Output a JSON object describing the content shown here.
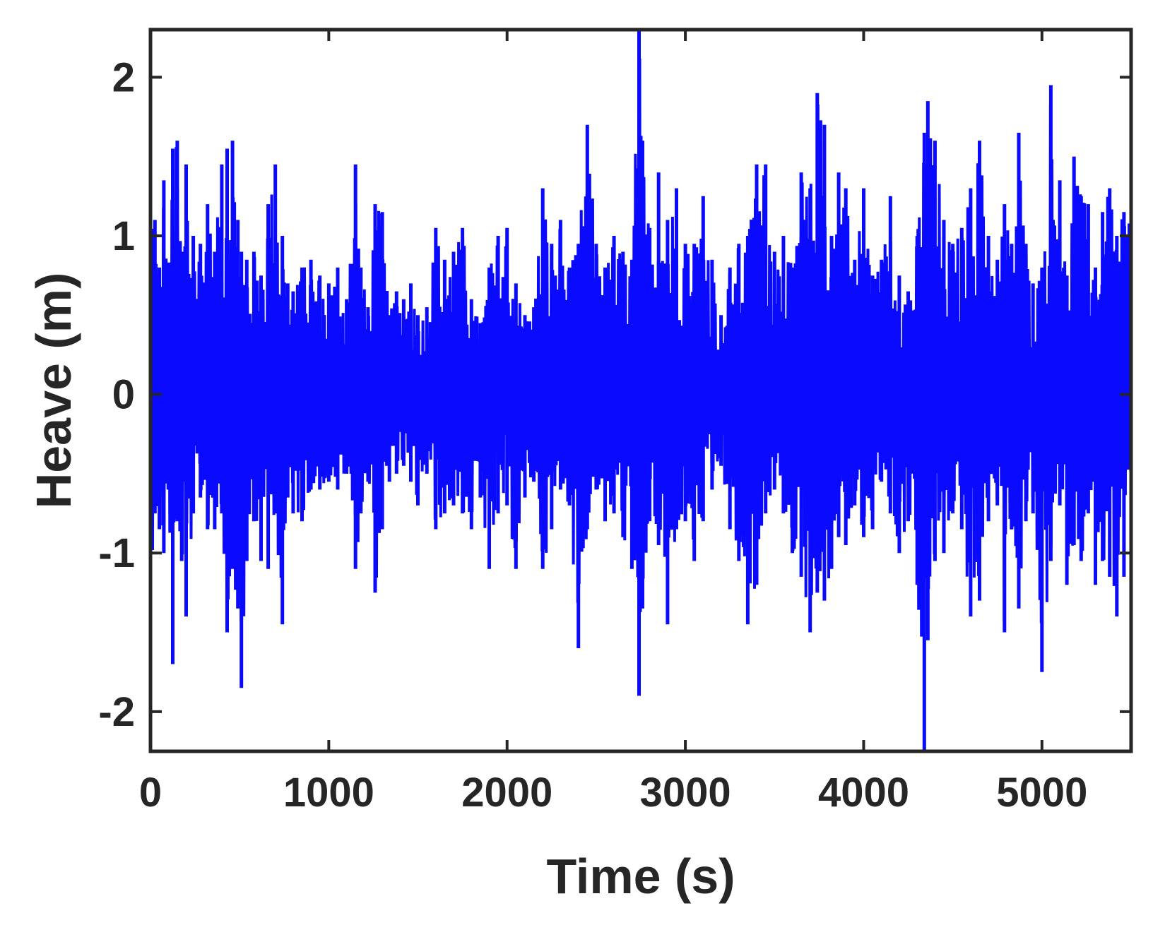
{
  "chart_data": {
    "type": "line",
    "title": "",
    "xlabel": "Time (s)",
    "ylabel": "Heave (m)",
    "xlim": [
      0,
      5500
    ],
    "ylim": [
      -2.25,
      2.3
    ],
    "xticks": [
      0,
      1000,
      2000,
      3000,
      4000,
      5000
    ],
    "xtick_labels": [
      "0",
      "1000",
      "2000",
      "3000",
      "4000",
      "5000"
    ],
    "yticks": [
      2,
      1,
      0,
      -1,
      -2
    ],
    "ytick_labels": [
      "2",
      "1",
      "0",
      "-1",
      "-2"
    ],
    "grid": false,
    "legend": "none",
    "line_color": "#0a0aff",
    "axis_color": "#262626",
    "series": [
      {
        "sampling_interval_s": 1,
        "envelope_x": [
          0,
          25,
          50,
          75,
          100,
          125,
          150,
          175,
          200,
          240,
          280,
          320,
          360,
          400,
          430,
          460,
          490,
          510,
          540,
          580,
          620,
          660,
          700,
          740,
          770,
          800,
          850,
          900,
          950,
          1000,
          1050,
          1100,
          1150,
          1180,
          1220,
          1260,
          1300,
          1340,
          1380,
          1420,
          1460,
          1500,
          1550,
          1600,
          1650,
          1700,
          1750,
          1800,
          1850,
          1900,
          1950,
          2000,
          2050,
          2100,
          2150,
          2200,
          2250,
          2300,
          2350,
          2400,
          2450,
          2500,
          2550,
          2600,
          2650,
          2700,
          2740,
          2760,
          2800,
          2850,
          2900,
          2950,
          3000,
          3050,
          3100,
          3150,
          3200,
          3250,
          3300,
          3350,
          3400,
          3450,
          3500,
          3550,
          3600,
          3650,
          3700,
          3740,
          3780,
          3820,
          3860,
          3900,
          3950,
          4000,
          4050,
          4100,
          4150,
          4200,
          4250,
          4300,
          4340,
          4360,
          4400,
          4450,
          4500,
          4550,
          4600,
          4650,
          4700,
          4750,
          4790,
          4830,
          4870,
          4910,
          4950,
          5000,
          5050,
          5100,
          5140,
          5180,
          5220,
          5260,
          5300,
          5340,
          5380,
          5420,
          5460,
          5500
        ],
        "envelope_upper": [
          1.5,
          1.1,
          0.8,
          1.35,
          0.75,
          1.55,
          1.6,
          0.9,
          1.45,
          1.0,
          0.95,
          1.2,
          0.9,
          1.45,
          1.55,
          1.6,
          1.1,
          0.9,
          0.85,
          0.9,
          0.75,
          1.2,
          1.45,
          1.0,
          0.7,
          0.65,
          0.8,
          0.85,
          0.75,
          0.7,
          0.8,
          0.6,
          1.45,
          0.8,
          0.55,
          1.2,
          1.15,
          0.5,
          0.65,
          0.6,
          0.7,
          0.5,
          0.55,
          1.05,
          0.85,
          0.9,
          1.05,
          0.6,
          0.45,
          0.8,
          1.0,
          1.05,
          0.7,
          0.5,
          0.55,
          1.3,
          0.95,
          1.1,
          0.8,
          0.95,
          1.7,
          0.95,
          0.8,
          1.0,
          0.9,
          0.85,
          2.3,
          1.6,
          1.05,
          1.4,
          1.1,
          1.3,
          0.95,
          0.95,
          1.25,
          0.85,
          0.5,
          0.8,
          0.95,
          1.0,
          1.45,
          1.45,
          0.9,
          1.0,
          0.8,
          1.4,
          1.3,
          1.9,
          1.7,
          1.0,
          1.4,
          1.3,
          0.85,
          1.3,
          0.75,
          0.85,
          1.25,
          0.75,
          0.65,
          1.0,
          1.65,
          1.85,
          1.6,
          1.1,
          0.95,
          1.05,
          1.3,
          1.6,
          1.0,
          0.85,
          1.2,
          0.95,
          1.65,
          0.95,
          0.7,
          0.8,
          1.95,
          1.35,
          0.75,
          1.5,
          1.25,
          1.2,
          0.8,
          1.15,
          1.3,
          1.0,
          1.15,
          1.3
        ],
        "envelope_lower": [
          -1.2,
          -0.75,
          -0.85,
          -1.0,
          -0.6,
          -1.7,
          -0.8,
          -1.05,
          -1.4,
          -0.75,
          -0.65,
          -0.85,
          -0.85,
          -0.75,
          -1.5,
          -1.1,
          -1.35,
          -1.85,
          -1.05,
          -0.8,
          -1.05,
          -1.1,
          -0.75,
          -1.45,
          -0.65,
          -0.75,
          -0.8,
          -0.6,
          -0.6,
          -0.55,
          -0.6,
          -0.5,
          -1.1,
          -0.75,
          -0.55,
          -1.25,
          -0.85,
          -0.55,
          -0.5,
          -0.45,
          -0.55,
          -0.7,
          -0.5,
          -0.85,
          -0.75,
          -0.7,
          -0.75,
          -0.85,
          -0.65,
          -1.1,
          -0.75,
          -0.7,
          -1.1,
          -0.65,
          -0.55,
          -1.1,
          -0.85,
          -0.6,
          -0.7,
          -1.6,
          -0.85,
          -0.6,
          -0.8,
          -0.75,
          -0.9,
          -1.1,
          -1.9,
          -1.35,
          -0.8,
          -0.95,
          -1.45,
          -0.85,
          -0.8,
          -1.05,
          -0.8,
          -0.6,
          -0.45,
          -0.85,
          -1.05,
          -1.45,
          -1.2,
          -0.75,
          -0.6,
          -0.75,
          -1.0,
          -1.15,
          -1.5,
          -1.25,
          -1.3,
          -1.1,
          -0.9,
          -0.95,
          -0.7,
          -0.9,
          -0.85,
          -0.55,
          -0.75,
          -1.0,
          -0.8,
          -1.2,
          -2.25,
          -1.55,
          -1.05,
          -1.0,
          -0.75,
          -0.85,
          -1.4,
          -1.3,
          -0.8,
          -0.7,
          -1.5,
          -0.85,
          -1.35,
          -0.8,
          -0.75,
          -1.75,
          -1.05,
          -0.7,
          -1.2,
          -0.95,
          -1.05,
          -0.75,
          -1.2,
          -1.05,
          -1.15,
          -1.4,
          -1.15,
          -0.8
        ]
      }
    ]
  }
}
